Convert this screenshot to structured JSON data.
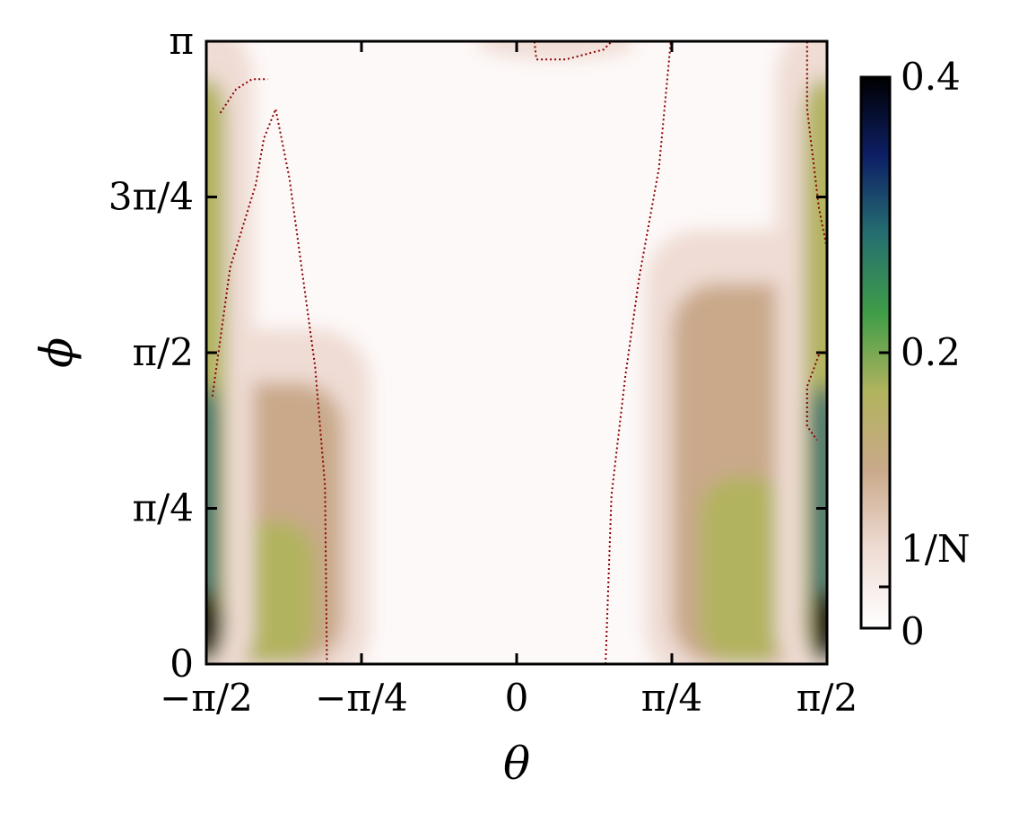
{
  "chart_data": {
    "type": "heatmap",
    "xlabel": "θ",
    "ylabel": "ϕ",
    "x_range": [
      -1.5708,
      1.5708
    ],
    "y_range": [
      0,
      3.1416
    ],
    "xticks": [
      "−π/2",
      "−π/4",
      "0",
      "π/4",
      "π/2"
    ],
    "yticks": [
      "0",
      "π/4",
      "π/2",
      "3π/4",
      "π"
    ],
    "colorbar": {
      "range": [
        0,
        0.4
      ],
      "ticks": [
        "0",
        "1/N",
        "0.2",
        "0.4"
      ],
      "tick_values": [
        0,
        0.03,
        0.2,
        0.4
      ],
      "colormap": [
        "#ffffff",
        "#efdcd4",
        "#c9a98a",
        "#b2b35e",
        "#3f9d47",
        "#256f70",
        "#0d1f66",
        "#000000"
      ]
    },
    "contour": {
      "level": "1/N",
      "style": "dotted",
      "color": "#8b0000"
    },
    "features": [
      {
        "theta": -1.24,
        "phi_min": 0.0,
        "phi_max": 1.6,
        "peak": 0.17
      },
      {
        "theta": 1.15,
        "phi_min": 0.0,
        "phi_max": 2.1,
        "peak": 0.16
      },
      {
        "theta": -1.57,
        "phi_min": 0.0,
        "phi_max": 3.14,
        "peak": 0.3
      },
      {
        "theta": 1.55,
        "phi_min": 0.0,
        "phi_max": 3.14,
        "peak": 0.3
      }
    ]
  }
}
